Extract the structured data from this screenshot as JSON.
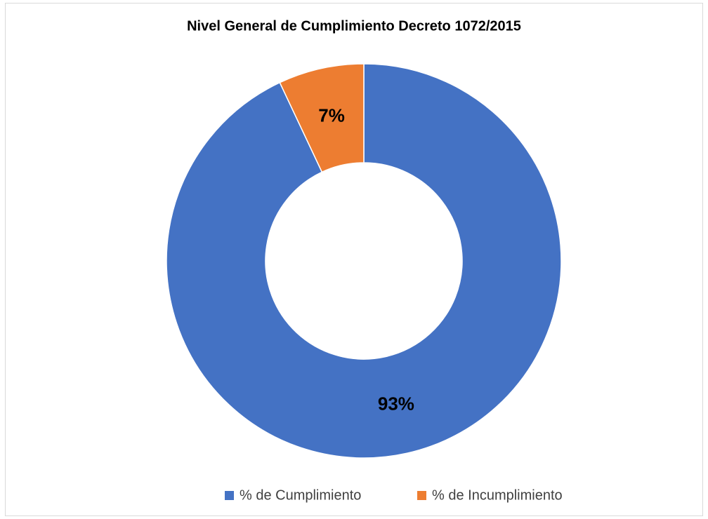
{
  "chart_data": {
    "type": "donut",
    "title": "Nivel General de Cumplimiento Decreto 1072/2015",
    "categories": [
      "% de Cumplimiento",
      "% de Incumplimiento"
    ],
    "values": [
      93,
      7
    ],
    "value_labels": [
      "93%",
      "7%"
    ],
    "colors": [
      "#4472c4",
      "#ed7d31"
    ],
    "legend": "bottom"
  }
}
